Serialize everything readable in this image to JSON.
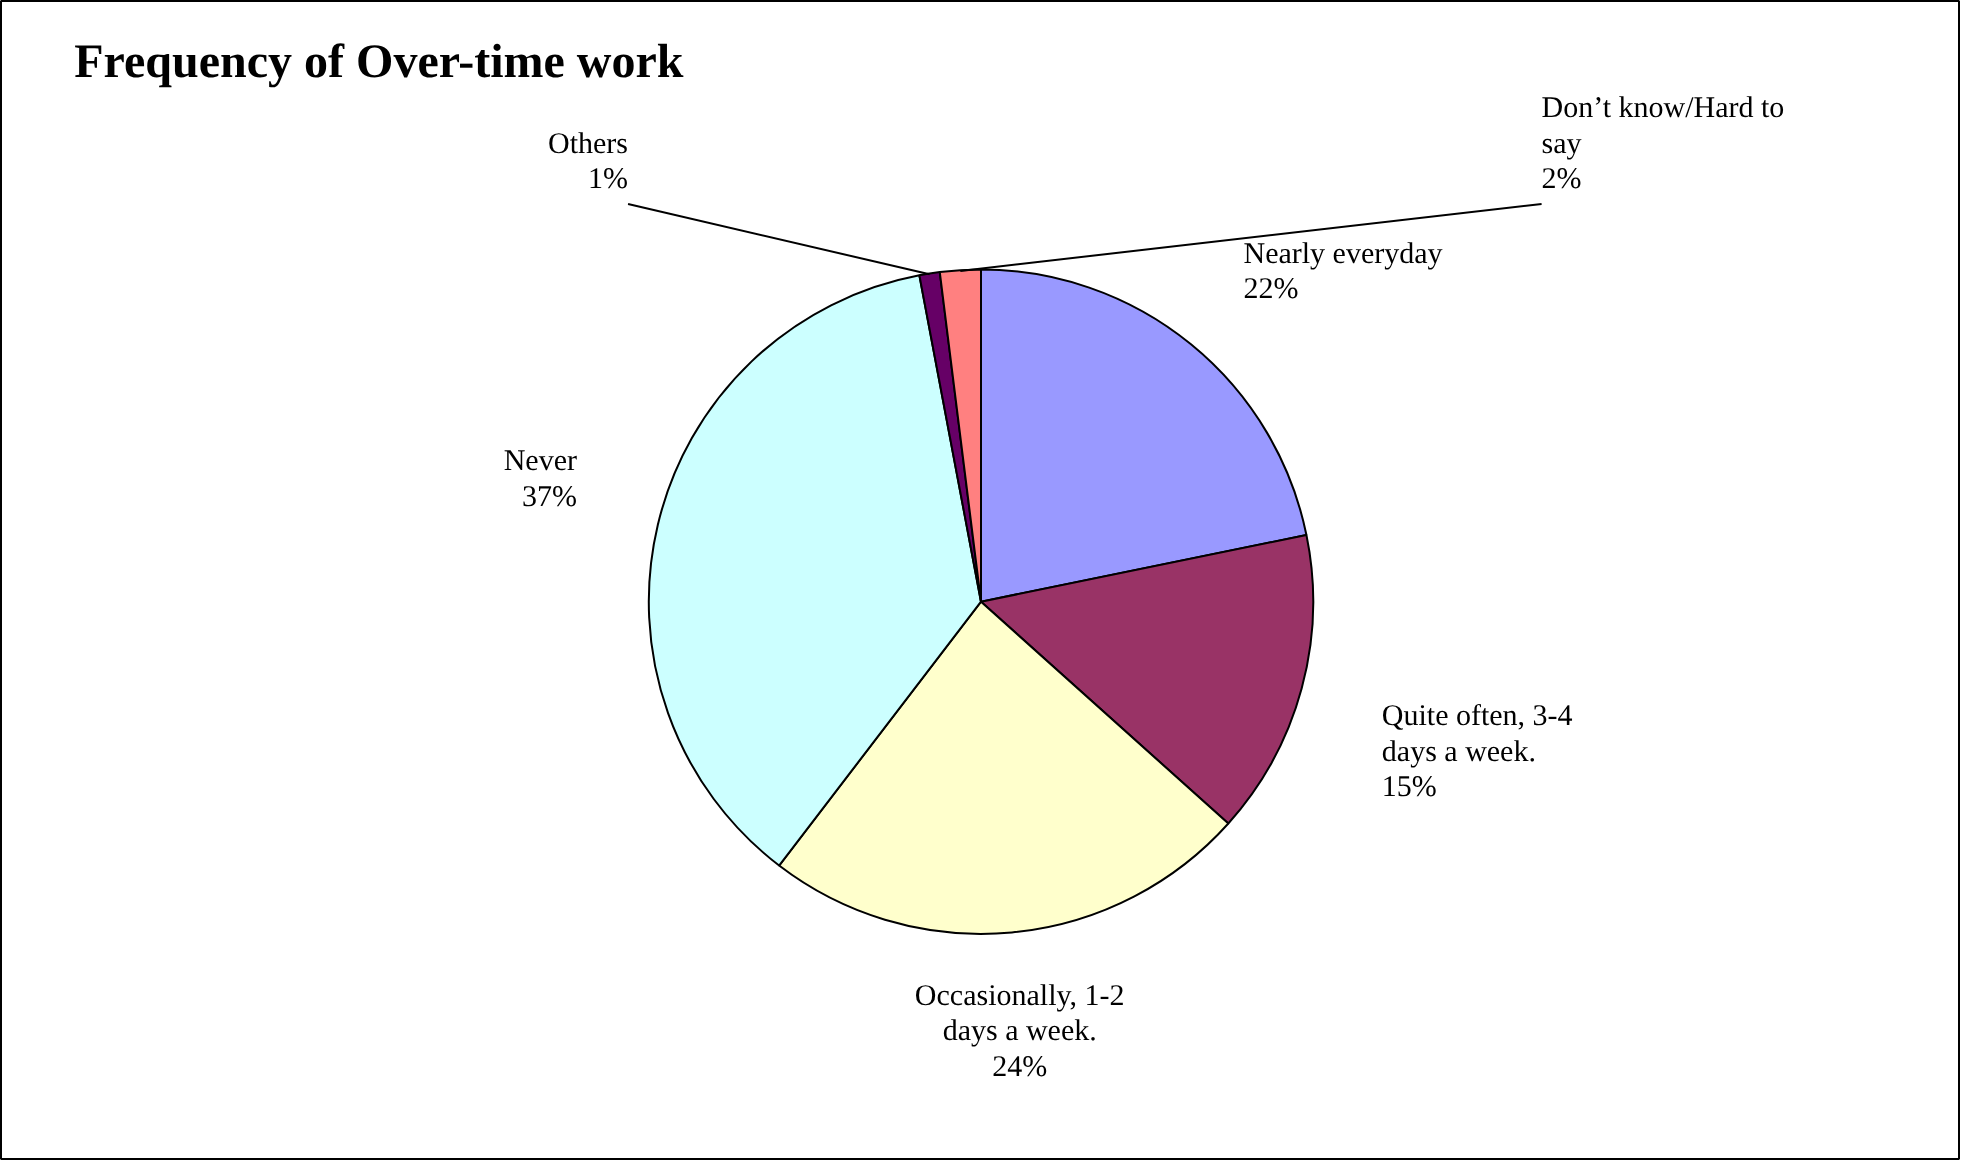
{
  "chart_data": {
    "type": "pie",
    "title": "Frequency of Over-time work",
    "categories": [
      "Nearly everyday",
      "Quite often, 3-4 days a week.",
      "Occasionally, 1-2 days a week.",
      "Never",
      "Others",
      "Don’t know/Hard to say"
    ],
    "values": [
      22,
      15,
      24,
      37,
      1,
      2
    ],
    "colors": [
      "#9999ff",
      "#993366",
      "#ffffcc",
      "#ccffff",
      "#660066",
      "#ff8080"
    ],
    "value_labels": [
      "22%",
      "15%",
      "24%",
      "37%",
      "1%",
      "2%"
    ]
  }
}
